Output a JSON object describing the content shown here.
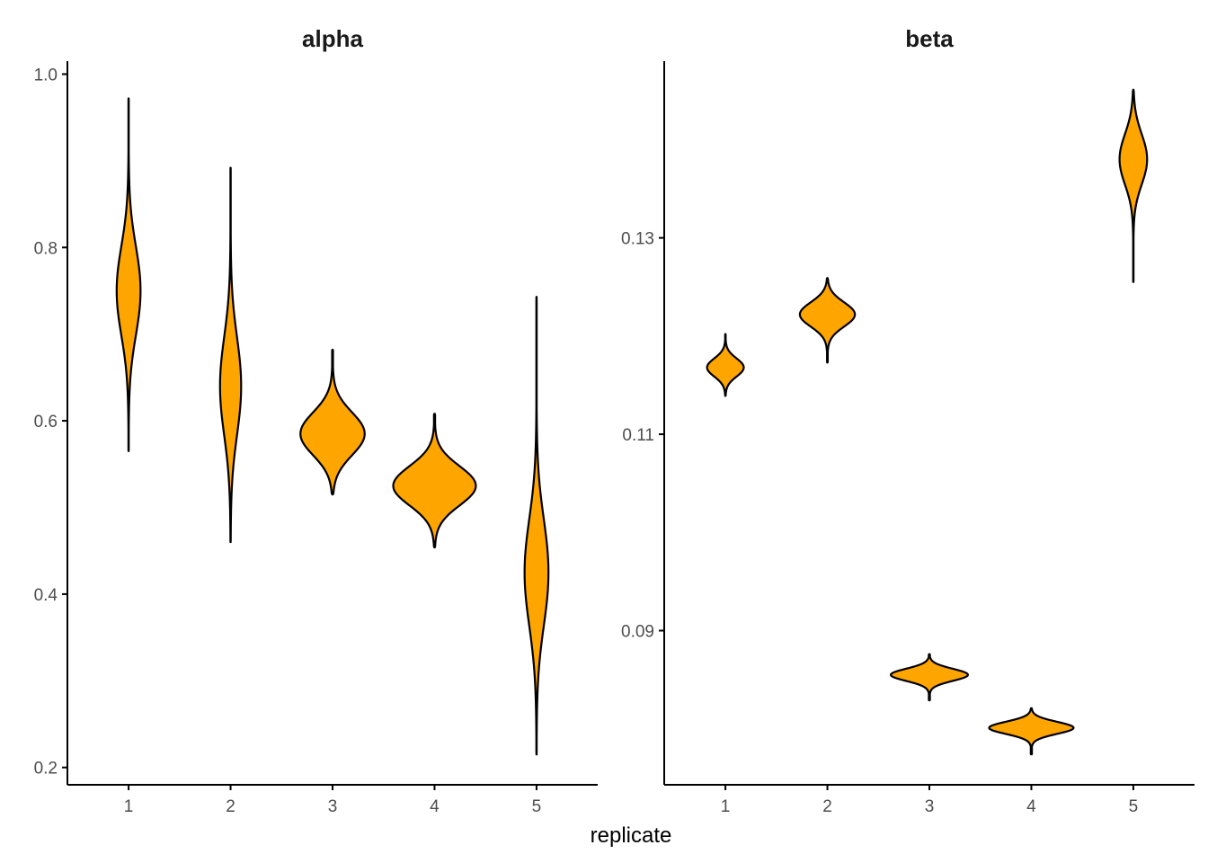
{
  "colors": {
    "fill": "#FFA500",
    "stroke": "#000000"
  },
  "chart_data": {
    "type": "violin",
    "xlabel": "replicate",
    "panels": [
      {
        "title": "alpha",
        "categories": [
          "1",
          "2",
          "3",
          "4",
          "5"
        ],
        "ylim": [
          0.18,
          1.015
        ],
        "yticks": [
          0.2,
          0.4,
          0.6,
          0.8,
          1.0
        ],
        "ytick_labels": [
          "0.2",
          "0.4",
          "0.6",
          "0.8",
          "1.0"
        ],
        "violins": [
          {
            "category": "1",
            "min": 0.565,
            "max": 0.972,
            "center": 0.75,
            "half_width": 0.13,
            "sd": 0.05
          },
          {
            "category": "2",
            "min": 0.46,
            "max": 0.892,
            "center": 0.64,
            "half_width": 0.115,
            "sd": 0.055
          },
          {
            "category": "3",
            "min": 0.515,
            "max": 0.682,
            "center": 0.585,
            "half_width": 0.35,
            "sd": 0.024
          },
          {
            "category": "4",
            "min": 0.454,
            "max": 0.608,
            "center": 0.525,
            "half_width": 0.45,
            "sd": 0.022
          },
          {
            "category": "5",
            "min": 0.215,
            "max": 0.743,
            "center": 0.425,
            "half_width": 0.13,
            "sd": 0.06
          }
        ]
      },
      {
        "title": "beta",
        "categories": [
          "1",
          "2",
          "3",
          "4",
          "5"
        ],
        "ylim": [
          0.0743,
          0.148
        ],
        "yticks": [
          0.09,
          0.11,
          0.13
        ],
        "ytick_labels": [
          "0.09",
          "0.11",
          "0.13"
        ],
        "violins": [
          {
            "category": "1",
            "min": 0.1139,
            "max": 0.1202,
            "center": 0.1168,
            "half_width": 0.2,
            "sd": 0.0009
          },
          {
            "category": "2",
            "min": 0.1173,
            "max": 0.1259,
            "center": 0.1222,
            "half_width": 0.3,
            "sd": 0.0012
          },
          {
            "category": "3",
            "min": 0.0829,
            "max": 0.0876,
            "center": 0.0855,
            "half_width": 0.42,
            "sd": 0.0006
          },
          {
            "category": "4",
            "min": 0.0774,
            "max": 0.0821,
            "center": 0.0801,
            "half_width": 0.46,
            "sd": 0.0006
          },
          {
            "category": "5",
            "min": 0.1255,
            "max": 0.1451,
            "center": 0.138,
            "half_width": 0.15,
            "sd": 0.0025
          }
        ]
      }
    ]
  }
}
